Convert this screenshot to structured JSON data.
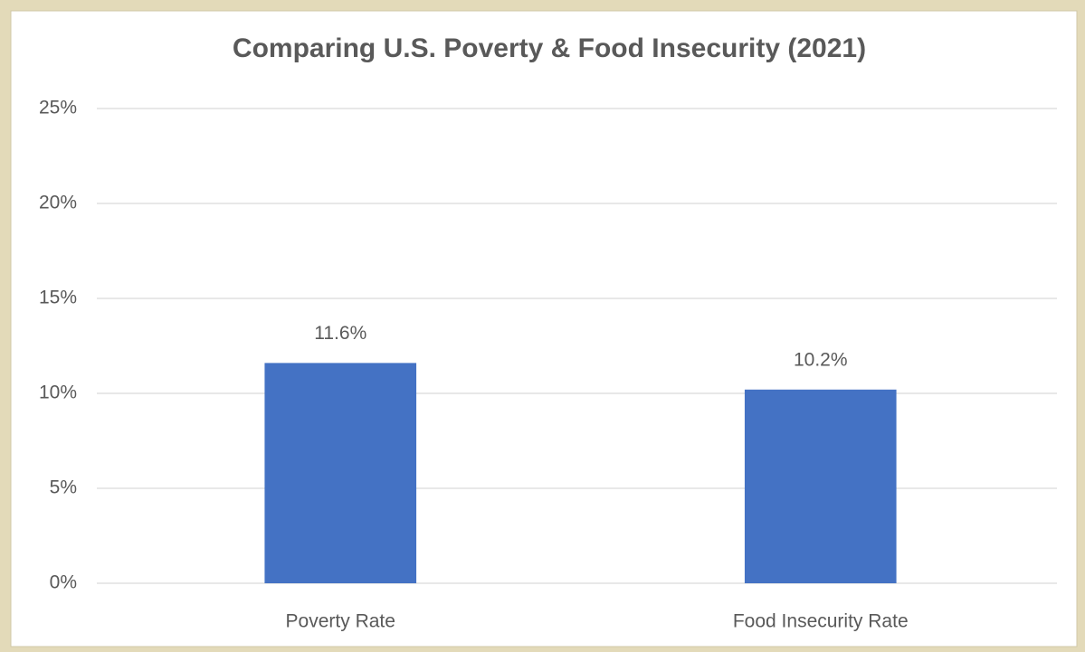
{
  "chart_data": {
    "type": "bar",
    "title": "Comparing U.S. Poverty & Food Insecurity (2021)",
    "categories": [
      "Poverty Rate",
      "Food Insecurity Rate"
    ],
    "values": [
      11.6,
      10.2
    ],
    "value_labels": [
      "11.6%",
      "10.2%"
    ],
    "color": "#4472c4",
    "ylim": [
      0,
      25
    ],
    "yticks": [
      {
        "value": 0,
        "label": "0%"
      },
      {
        "value": 5,
        "label": "5%"
      },
      {
        "value": 10,
        "label": "10%"
      },
      {
        "value": 15,
        "label": "15%"
      },
      {
        "value": 20,
        "label": "20%"
      },
      {
        "value": 25,
        "label": "25%"
      }
    ],
    "grid": true
  }
}
